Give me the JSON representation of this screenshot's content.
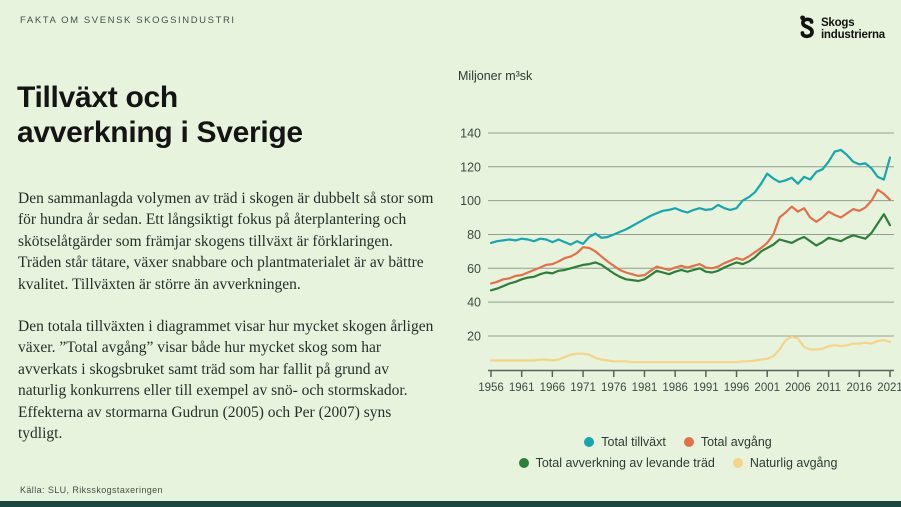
{
  "page": {
    "eyebrow": "FAKTA OM SVENSK SKOGSINDUSTRI",
    "title": "Tillväxt och\navverkning i Sverige",
    "paragraph1": "Den sammanlagda volymen av träd i skogen är dubbelt så stor som för hundra år sedan. Ett långsiktigt fokus på återplantering och skötselåtgärder som främjar skogens tillväxt är förklaringen. Träden står tätare, växer snabbare och plantmaterialet är av bättre kvalitet. Tillväxten är större än avverkningen.",
    "paragraph2": "Den totala tillväxten i diagrammet visar hur mycket skogen årligen växer. ”Total avgång” visar både hur mycket skog som har avverkats i skogsbruket samt träd som har fallit på grund av naturlig konkurrens eller till exempel av snö- och stormskador. Effekterna av stormarna Gudrun (2005) och Per (2007) syns tydligt.",
    "source": "Källa: SLU, Riksskogstaxeringen",
    "logo": {
      "line1": "Skogs",
      "line2": "industrierna"
    }
  },
  "colors": {
    "background": "#e7f3dd",
    "grid": "#90a090",
    "axis": "#55655b",
    "axis_text": "#3c4c44",
    "bottom_bar": "#1c4640",
    "teal": "#18a5ad",
    "orange": "#e2714b",
    "green": "#2f7d3b",
    "yellow": "#f5d489"
  },
  "chart_data": {
    "type": "line",
    "title": "Miljoner m³sk",
    "ylabel": "Miljoner m³sk",
    "xlabel": "",
    "ylim": [
      0,
      145
    ],
    "yticks": [
      20,
      40,
      60,
      80,
      100,
      120,
      140
    ],
    "xticks": [
      1956,
      1961,
      1966,
      1971,
      1976,
      1981,
      1986,
      1991,
      1996,
      2001,
      2006,
      2011,
      2016,
      2021
    ],
    "x_start": 1956,
    "x_end": 2021,
    "x_step": 1,
    "grid": true,
    "legend_position": "bottom",
    "series": [
      {
        "name": "Total tillväxt",
        "color": "#18a5ad",
        "values": [
          75,
          76,
          76.5,
          77,
          76.5,
          77.5,
          77,
          76,
          77.5,
          77,
          75.5,
          77,
          75.5,
          74,
          76,
          74.5,
          78.5,
          80.5,
          78,
          78.5,
          80,
          81.5,
          83,
          85,
          87,
          89,
          91,
          92.5,
          94,
          94.5,
          95.5,
          94,
          93,
          94.5,
          95.5,
          94.5,
          95,
          97.5,
          95.5,
          94.5,
          95.5,
          100,
          102,
          105,
          110,
          116,
          113,
          111,
          112,
          113.5,
          110,
          114,
          112.5,
          117,
          118.5,
          123,
          129,
          130,
          127,
          123,
          121.5,
          122,
          119,
          114,
          112.5,
          125.5
        ]
      },
      {
        "name": "Total avgång",
        "color": "#e2714b",
        "values": [
          51,
          52,
          53.5,
          54,
          55.5,
          56,
          57.5,
          59,
          60.5,
          62,
          62.5,
          64,
          66,
          67,
          69,
          72.5,
          72,
          70,
          67,
          64,
          61.5,
          59,
          57.5,
          56.5,
          55.5,
          56,
          58.5,
          61,
          60,
          59,
          60.5,
          61.5,
          60.5,
          61.5,
          62.5,
          60.5,
          60,
          61,
          63,
          64.5,
          66,
          65,
          67,
          69.5,
          72,
          75,
          80,
          90,
          93,
          96.5,
          93.5,
          95.5,
          90,
          87.5,
          90,
          93.5,
          91.5,
          90,
          92.5,
          95,
          94,
          96,
          100,
          106.5,
          104,
          100.5
        ]
      },
      {
        "name": "Total avverkning av levande träd",
        "color": "#2f7d3b",
        "values": [
          47,
          48,
          49.5,
          51,
          52,
          53.5,
          54.5,
          55,
          56.5,
          57.5,
          57,
          58.5,
          59,
          60,
          61,
          62,
          62.5,
          63.5,
          62,
          59.5,
          57,
          55,
          53.5,
          53,
          52.5,
          53.5,
          56,
          58.5,
          57.5,
          56.5,
          58,
          59,
          58,
          59,
          60,
          58,
          57.5,
          58.5,
          60.5,
          62,
          63.5,
          62.5,
          64,
          66.5,
          70,
          72,
          74,
          77,
          76,
          75,
          77,
          78.5,
          76,
          73.5,
          75.5,
          78,
          77,
          76,
          78,
          79.5,
          78.5,
          77.5,
          81,
          86.5,
          92,
          85.5
        ]
      },
      {
        "name": "Naturlig avgång",
        "color": "#f5d489",
        "values": [
          5.5,
          5.5,
          5.5,
          5.5,
          5.5,
          5.5,
          5.5,
          5.5,
          6,
          6,
          5.5,
          6,
          7.5,
          9,
          9.5,
          9.5,
          9,
          7,
          6,
          5.5,
          5,
          5,
          5,
          4.5,
          4.5,
          4.5,
          4.5,
          4.5,
          4.5,
          4.5,
          4.5,
          4.5,
          4.5,
          4.5,
          4.5,
          4.5,
          4.5,
          4.5,
          4.5,
          4.5,
          4.5,
          5,
          5,
          5.5,
          6,
          6.5,
          8,
          12,
          17.5,
          19.5,
          18.5,
          13.5,
          12,
          12,
          12.5,
          14,
          14.5,
          14,
          14.5,
          15.5,
          15.5,
          16,
          15.5,
          17,
          17.5,
          16.5
        ]
      }
    ]
  }
}
